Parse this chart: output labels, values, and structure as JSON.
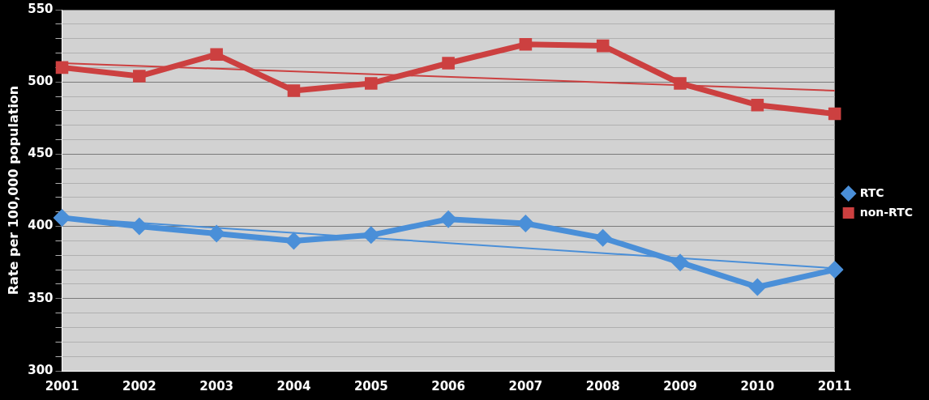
{
  "chart_data": {
    "type": "line",
    "ylabel": "Rate per 100,000 population",
    "categories": [
      "2001",
      "2002",
      "2003",
      "2004",
      "2005",
      "2006",
      "2007",
      "2008",
      "2009",
      "2010",
      "2011"
    ],
    "series": [
      {
        "name": "RTC",
        "color": "#4a8fd8",
        "marker": "diamond",
        "values": [
          406,
          400,
          395,
          390,
          394,
          405,
          402,
          392,
          375,
          358,
          370
        ]
      },
      {
        "name": "non-RTC",
        "color": "#cc4040",
        "marker": "square",
        "values": [
          510,
          504,
          519,
          494,
          499,
          513,
          526,
          525,
          499,
          484,
          478
        ]
      },
      {
        "type": "line",
        "color": "#4a8fd8",
        "values": [
          406,
          null,
          null,
          null,
          null,
          null,
          null,
          null,
          null,
          null,
          371
        ]
      },
      {
        "type": "line",
        "color": "#cc4040",
        "values": [
          513,
          null,
          null,
          null,
          null,
          null,
          null,
          null,
          null,
          null,
          494
        ]
      }
    ],
    "ylim": [
      300,
      550
    ],
    "yticks": [
      300,
      {
        "value": 310,
        "label": null
      },
      {
        "value": 320,
        "label": null
      },
      {
        "value": 330,
        "label": null
      },
      {
        "value": 340,
        "label": null
      },
      350,
      {
        "value": 360,
        "label": null
      },
      {
        "value": 370,
        "label": null
      },
      {
        "value": 380,
        "label": null
      },
      {
        "value": 390,
        "label": null
      },
      400,
      {
        "value": 410,
        "label": null
      },
      {
        "value": 420,
        "label": null
      },
      {
        "value": 430,
        "label": null
      },
      {
        "value": 440,
        "label": null
      },
      450,
      {
        "value": 460,
        "label": null
      },
      {
        "value": 470,
        "label": null
      },
      {
        "value": 480,
        "label": null
      },
      {
        "value": 490,
        "label": null
      },
      500,
      {
        "value": 510,
        "label": null
      },
      {
        "value": 520,
        "label": null
      },
      {
        "value": 530,
        "label": null
      },
      {
        "value": 540,
        "label": null
      },
      550
    ],
    "grid": "y",
    "legend": "right",
    "line_style": "solid"
  }
}
